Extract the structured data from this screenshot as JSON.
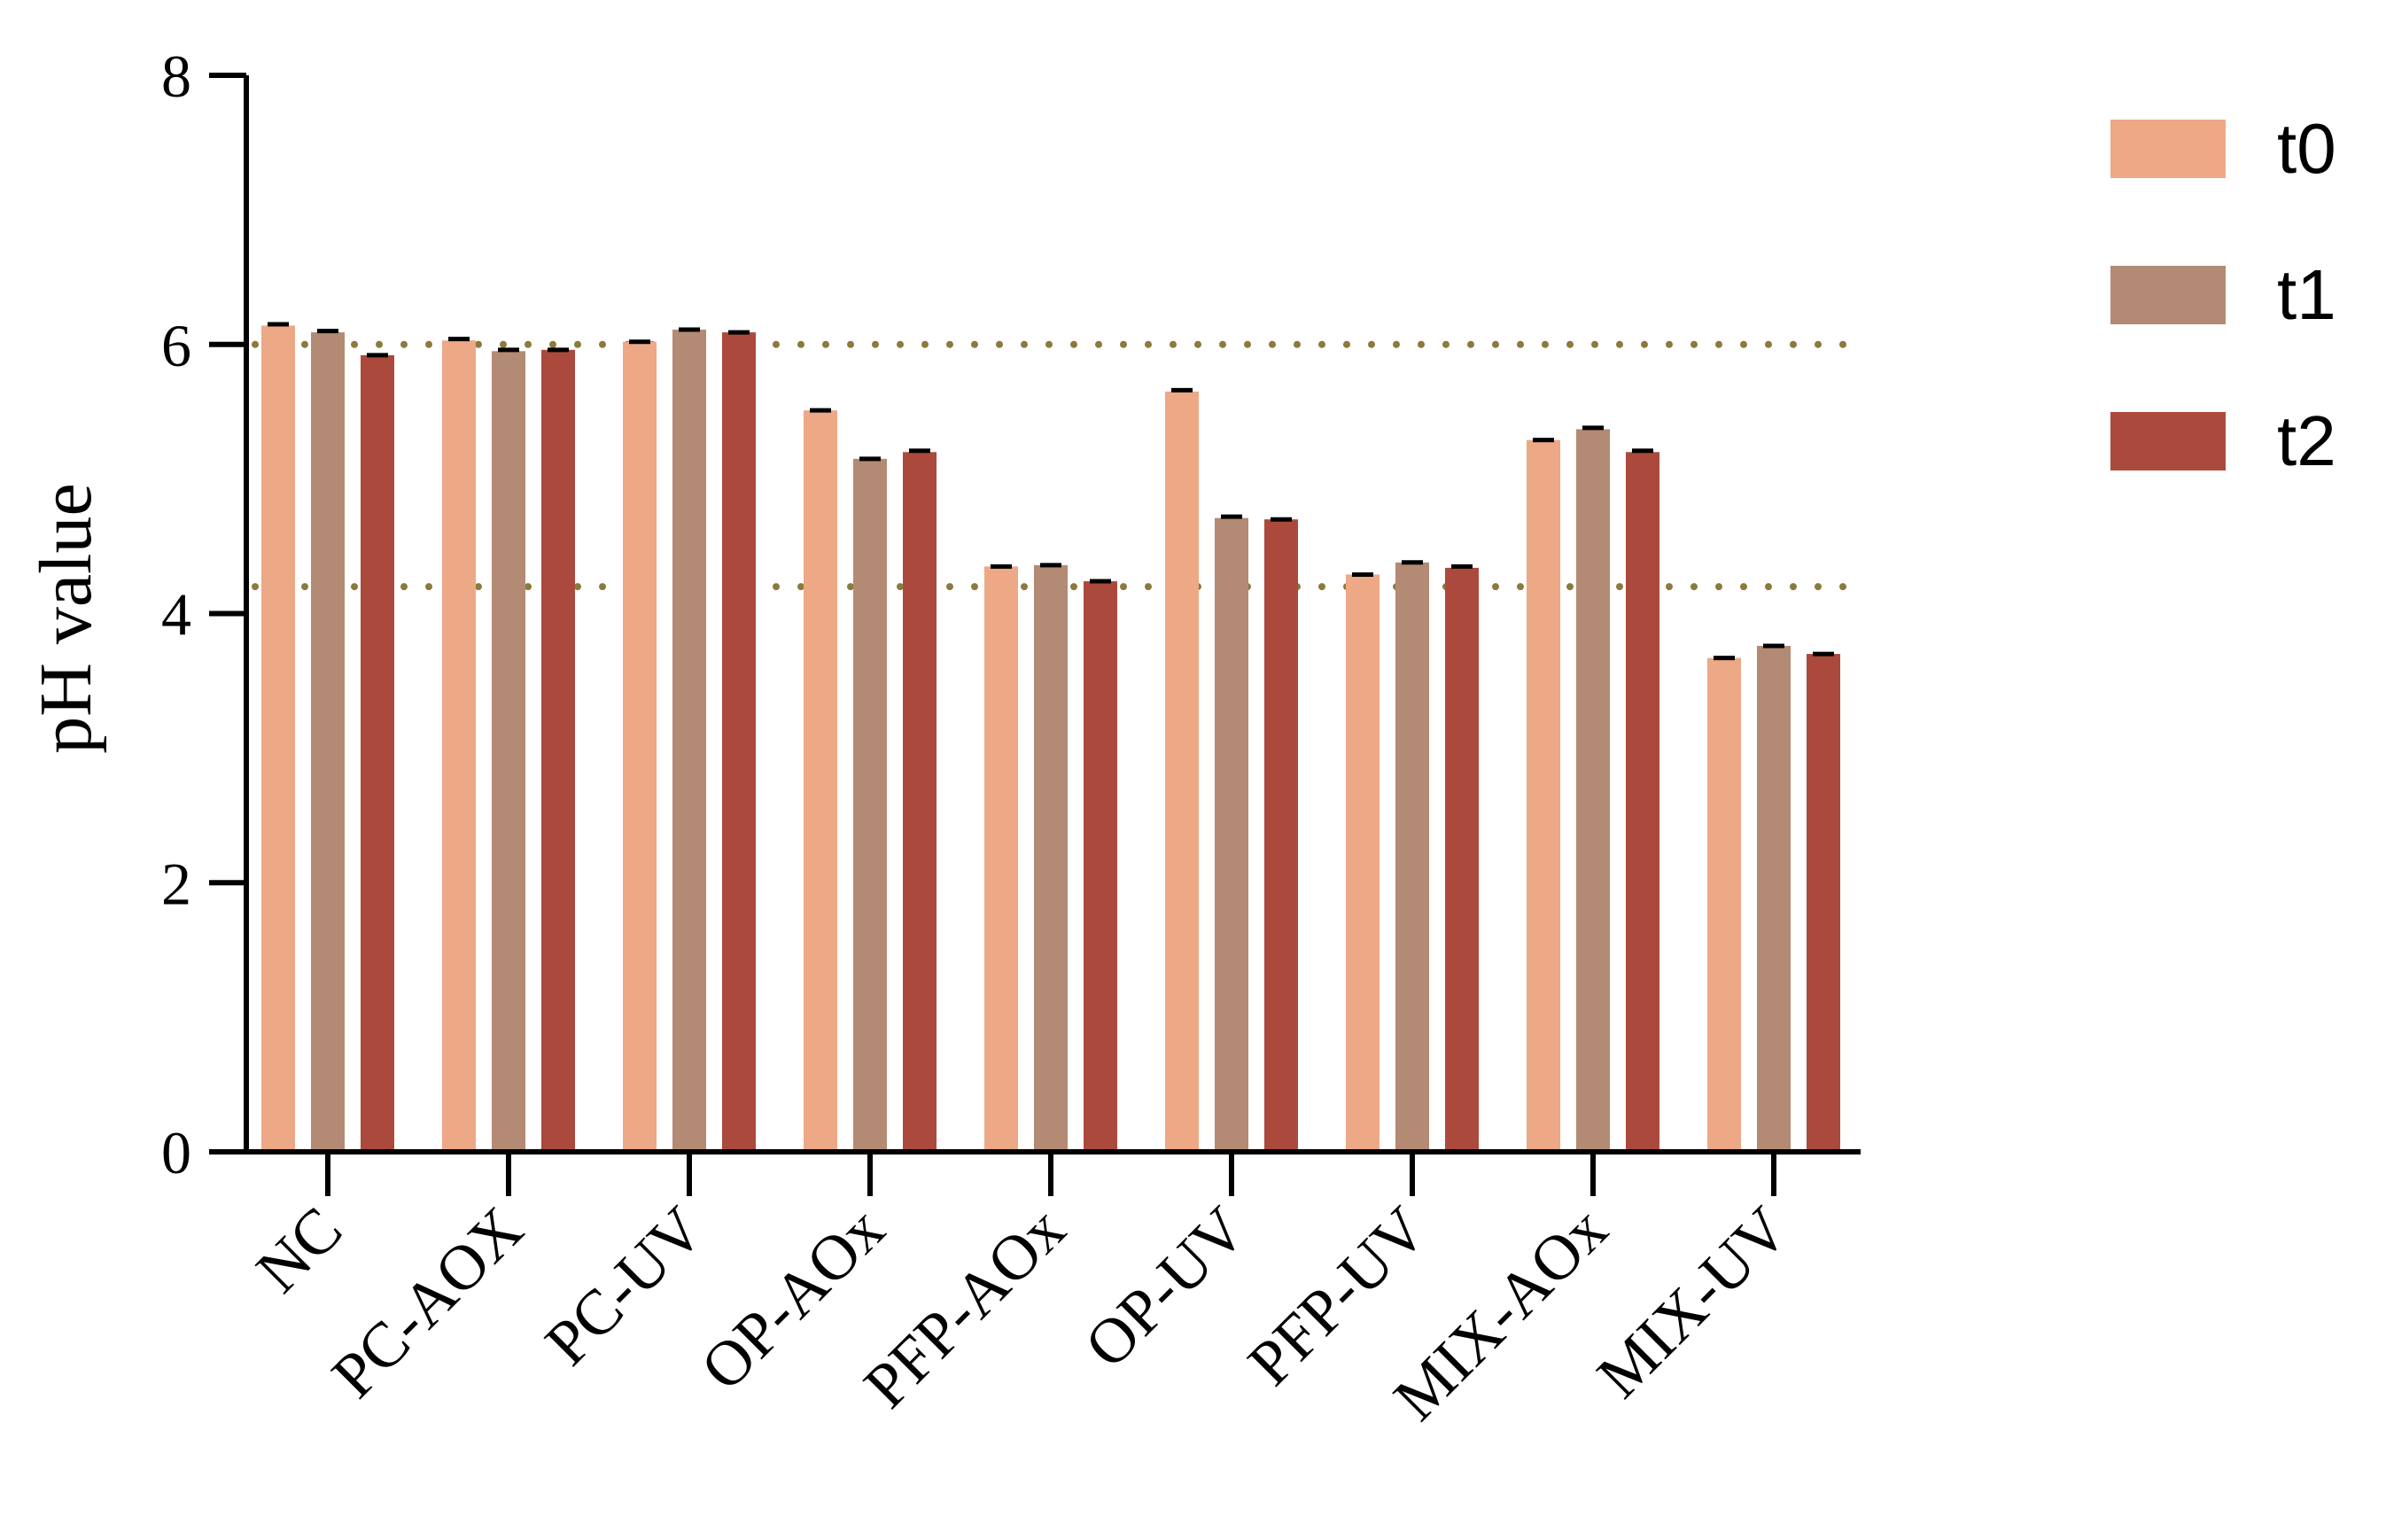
{
  "chart_data": {
    "type": "bar",
    "title": "",
    "xlabel": "",
    "ylabel": "pH value",
    "ylim": [
      0,
      8
    ],
    "yticks": [
      0,
      2,
      4,
      6,
      8
    ],
    "categories": [
      "NC",
      "PC-AOX",
      "PC-UV",
      "OP-AOx",
      "PFP-AOx",
      "OP-UV",
      "PFP-UV",
      "MIX-AOx",
      "MIX-UV"
    ],
    "series": [
      {
        "name": "t0",
        "color": "#EDA886",
        "values": [
          6.14,
          6.03,
          6.02,
          5.51,
          4.35,
          5.65,
          4.29,
          5.29,
          3.67
        ]
      },
      {
        "name": "t1",
        "color": "#B38A73",
        "values": [
          6.09,
          5.95,
          6.11,
          5.15,
          4.36,
          4.71,
          4.38,
          5.37,
          3.76
        ]
      },
      {
        "name": "t2",
        "color": "#AB4A3C",
        "values": [
          5.92,
          5.96,
          6.09,
          5.2,
          4.24,
          4.7,
          4.34,
          5.2,
          3.7
        ]
      }
    ],
    "error_bars": [
      [
        0.01,
        0.01,
        0.0,
        0.0,
        0.0,
        0.01,
        0.0,
        0.0,
        0.0
      ],
      [
        0.01,
        0.01,
        0.0,
        0.0,
        0.0,
        0.01,
        0.0,
        0.01,
        0.0
      ],
      [
        0.0,
        0.0,
        0.0,
        0.01,
        0.0,
        0.0,
        0.01,
        0.01,
        0.0
      ]
    ],
    "reference_lines": [
      6.0,
      4.2
    ],
    "reference_line_color": "#8C7A3C",
    "grid": false,
    "legend_position": "top-right"
  }
}
